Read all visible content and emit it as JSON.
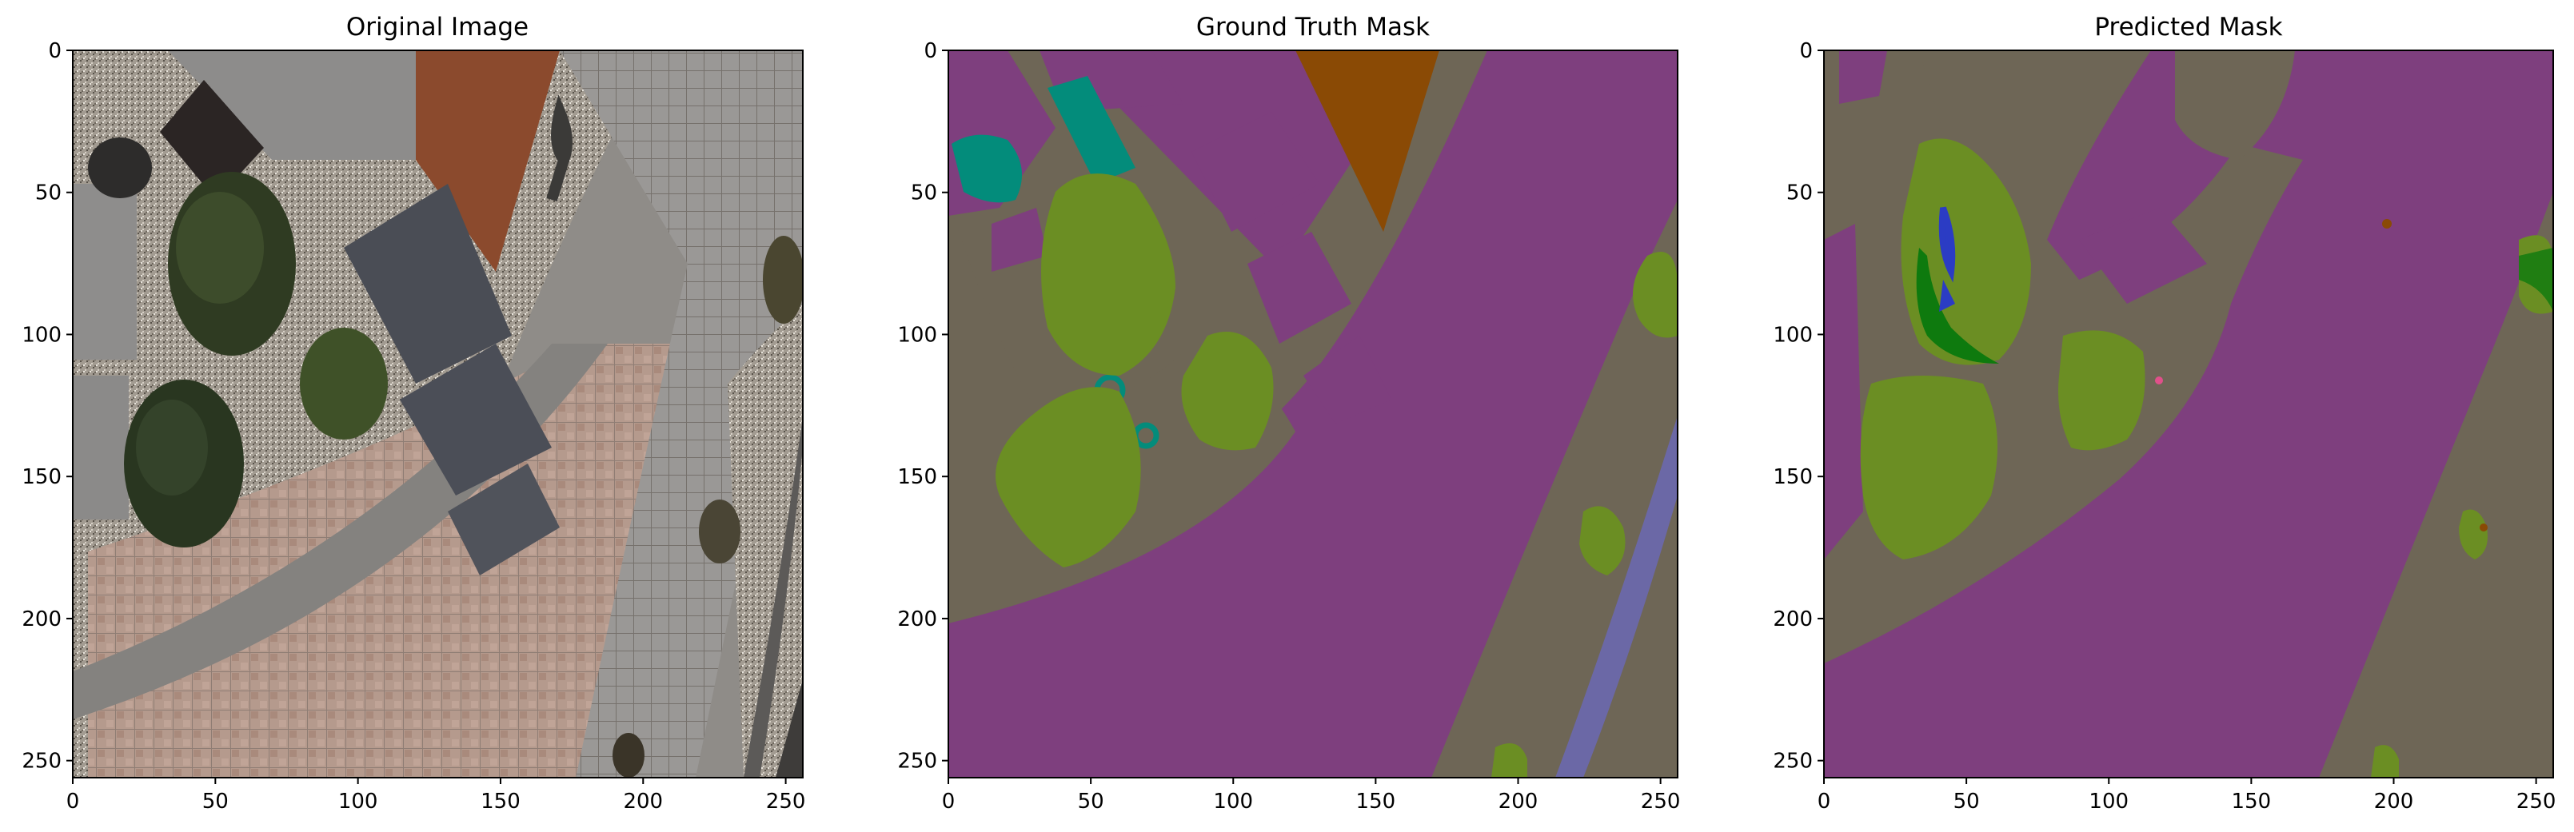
{
  "chart_data": [
    {
      "type": "image",
      "title": "Original Image",
      "xticks": [
        0,
        50,
        100,
        150,
        200,
        250
      ],
      "yticks": [
        0,
        50,
        100,
        150,
        200,
        250
      ],
      "xlim": [
        0,
        256
      ],
      "ylim": [
        256,
        0
      ]
    },
    {
      "type": "heatmap",
      "title": "Ground Truth Mask",
      "xticks": [
        0,
        50,
        100,
        150,
        200,
        250
      ],
      "yticks": [
        0,
        50,
        100,
        150,
        200,
        250
      ],
      "xlim": [
        0,
        256
      ],
      "ylim": [
        256,
        0
      ]
    },
    {
      "type": "heatmap",
      "title": "Predicted Mask",
      "xticks": [
        0,
        50,
        100,
        150,
        200,
        250
      ],
      "yticks": [
        0,
        50,
        100,
        150,
        200,
        250
      ],
      "xlim": [
        0,
        256
      ],
      "ylim": [
        256,
        0
      ]
    }
  ],
  "colors": {
    "background_class": "#7e3f7e",
    "paved_area": "#6e6656",
    "vegetation": "#6b8e23",
    "dark_vegetation": "#0e7a0e",
    "water_blue": "#2b3cc4",
    "teal": "#038c7b",
    "orange_brown": "#8a4a05",
    "slate_blue": "#6b68a6",
    "pink": "#e0508a"
  }
}
